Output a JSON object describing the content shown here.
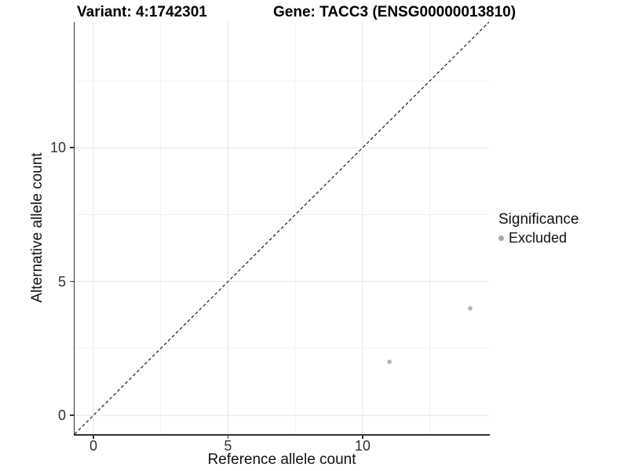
{
  "chart_data": {
    "type": "scatter",
    "title_left": "Variant: 4:1742301",
    "title_right": "Gene: TACC3 (ENSG00000013810)",
    "xlabel": "Reference allele count",
    "ylabel": "Alternative allele count",
    "x_ticks": [
      0,
      5,
      10
    ],
    "y_ticks": [
      0,
      5,
      10
    ],
    "x_minor_ticks": [
      2.5,
      7.5,
      12.5
    ],
    "y_minor_ticks": [
      2.5,
      7.5,
      12.5
    ],
    "xlim": [
      -0.7,
      14.7
    ],
    "ylim": [
      -0.7,
      14.7
    ],
    "grid": true,
    "identity_line": {
      "style": "dashed",
      "from": [
        -0.7,
        -0.7
      ],
      "to": [
        14.7,
        14.7
      ],
      "color": "#1a1a1a"
    },
    "series": [
      {
        "name": "Excluded",
        "color": "#b3b3b3",
        "points": [
          {
            "x": 11,
            "y": 2
          },
          {
            "x": 14,
            "y": 4
          }
        ]
      }
    ],
    "legend": {
      "title": "Significance",
      "position": "right",
      "items": [
        {
          "label": "Excluded",
          "color": "#a8a8a8"
        }
      ]
    },
    "colors": {
      "grid_major": "#e4e4e4",
      "grid_minor": "#f0f0f0",
      "axis_line": "#333333",
      "background": "#ffffff"
    }
  }
}
